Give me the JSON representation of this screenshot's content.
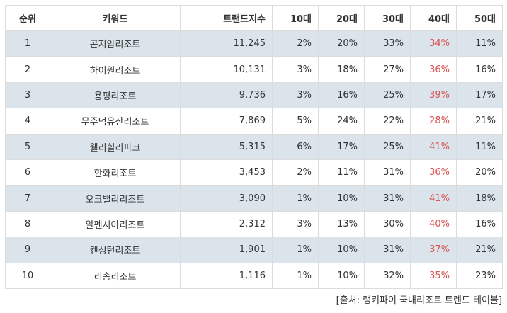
{
  "table": {
    "headers": [
      "순위",
      "키워드",
      "트랜드지수",
      "10대",
      "20대",
      "30대",
      "40대",
      "50대"
    ],
    "rows": [
      [
        "1",
        "곤지암리조트",
        "11,245",
        "2%",
        "20%",
        "33%",
        "34%",
        "11%"
      ],
      [
        "2",
        "하이원리조트",
        "10,131",
        "3%",
        "18%",
        "27%",
        "36%",
        "16%"
      ],
      [
        "3",
        "용평리조트",
        "9,736",
        "3%",
        "16%",
        "25%",
        "39%",
        "17%"
      ],
      [
        "4",
        "무주덕유산리조트",
        "7,869",
        "5%",
        "24%",
        "22%",
        "28%",
        "21%"
      ],
      [
        "5",
        "웰리힐리파크",
        "5,315",
        "6%",
        "17%",
        "25%",
        "41%",
        "11%"
      ],
      [
        "6",
        "한화리조트",
        "3,453",
        "2%",
        "11%",
        "31%",
        "36%",
        "20%"
      ],
      [
        "7",
        "오크밸리리조트",
        "3,090",
        "1%",
        "10%",
        "31%",
        "41%",
        "18%"
      ],
      [
        "8",
        "알펜시아리조트",
        "2,312",
        "3%",
        "13%",
        "30%",
        "40%",
        "16%"
      ],
      [
        "9",
        "켄싱턴리조트",
        "1,901",
        "1%",
        "10%",
        "31%",
        "37%",
        "21%"
      ],
      [
        "10",
        "리솜리조트",
        "1,116",
        "1%",
        "10%",
        "32%",
        "35%",
        "23%"
      ]
    ]
  },
  "highlight_color": "#d9534f",
  "shaded_row_color": "#dae4ea",
  "source": "[출처: 랭키파이 국내리조트 트렌드 테이블]"
}
